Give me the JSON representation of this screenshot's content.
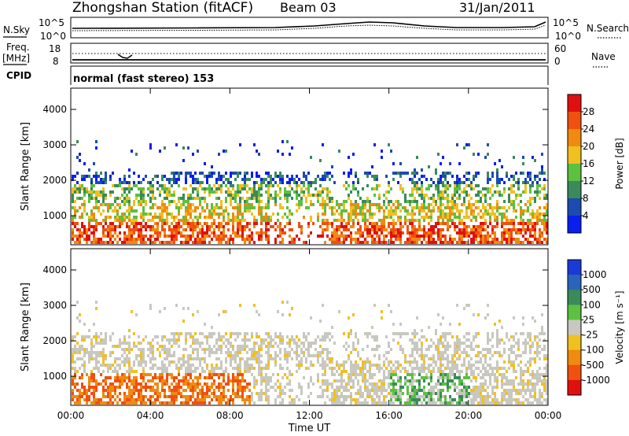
{
  "header": {
    "station": "Zhongshan Station (fitACF)",
    "beam": "Beam 03",
    "date": "31/Jan/2011"
  },
  "noise_panel": {
    "left_label": "N.Sky",
    "right_label": "N.Search",
    "left_ticks": [
      "10^5",
      "10^0"
    ],
    "right_ticks": [
      "10^5",
      "10^0"
    ]
  },
  "freq_panel": {
    "left_label": "Freq.",
    "left_unit": "[MHz]",
    "right_label": "Nave",
    "left_ticks": [
      "18",
      "8"
    ],
    "right_ticks": [
      "60",
      "0"
    ]
  },
  "cpid_panel": {
    "label": "CPID",
    "mode_text": "normal (fast stereo) 153"
  },
  "chart_data": [
    {
      "type": "heatmap",
      "name": "power",
      "ylabel": "Slant Range [km]",
      "xlabel": "",
      "x_ticks": [
        "00:00",
        "04:00",
        "08:00",
        "12:00",
        "16:00",
        "20:00",
        "00:00"
      ],
      "y_ticks": [
        1000,
        2000,
        3000,
        4000
      ],
      "xlim": [
        0,
        24
      ],
      "ylim": [
        180,
        4600
      ],
      "colorbar": {
        "label": "Power [dB]",
        "ticks": [
          "4",
          "8",
          "12",
          "16",
          "20",
          "24",
          "28"
        ],
        "colors": [
          "#0a1ef0",
          "#1c4cb0",
          "#3a8a5a",
          "#5cc040",
          "#f0c020",
          "#f08a10",
          "#f05010",
          "#e01010"
        ]
      }
    },
    {
      "type": "heatmap",
      "name": "velocity",
      "ylabel": "Slant Range [km]",
      "xlabel": "Time UT",
      "x_ticks": [
        "00:00",
        "04:00",
        "08:00",
        "12:00",
        "16:00",
        "20:00",
        "00:00"
      ],
      "y_ticks": [
        1000,
        2000,
        3000,
        4000
      ],
      "xlim": [
        0,
        24
      ],
      "ylim": [
        180,
        4600
      ],
      "colorbar": {
        "label": "Velocity [m s⁻¹]",
        "ticks": [
          "1000",
          "500",
          "100",
          "25",
          "-25",
          "-100",
          "-500",
          "-1000"
        ],
        "colors": [
          "#1a3ad8",
          "#2a64b8",
          "#3a8a5a",
          "#5cc040",
          "#c8c8c0",
          "#f0c020",
          "#f08a10",
          "#f05010",
          "#e01010"
        ]
      }
    }
  ]
}
